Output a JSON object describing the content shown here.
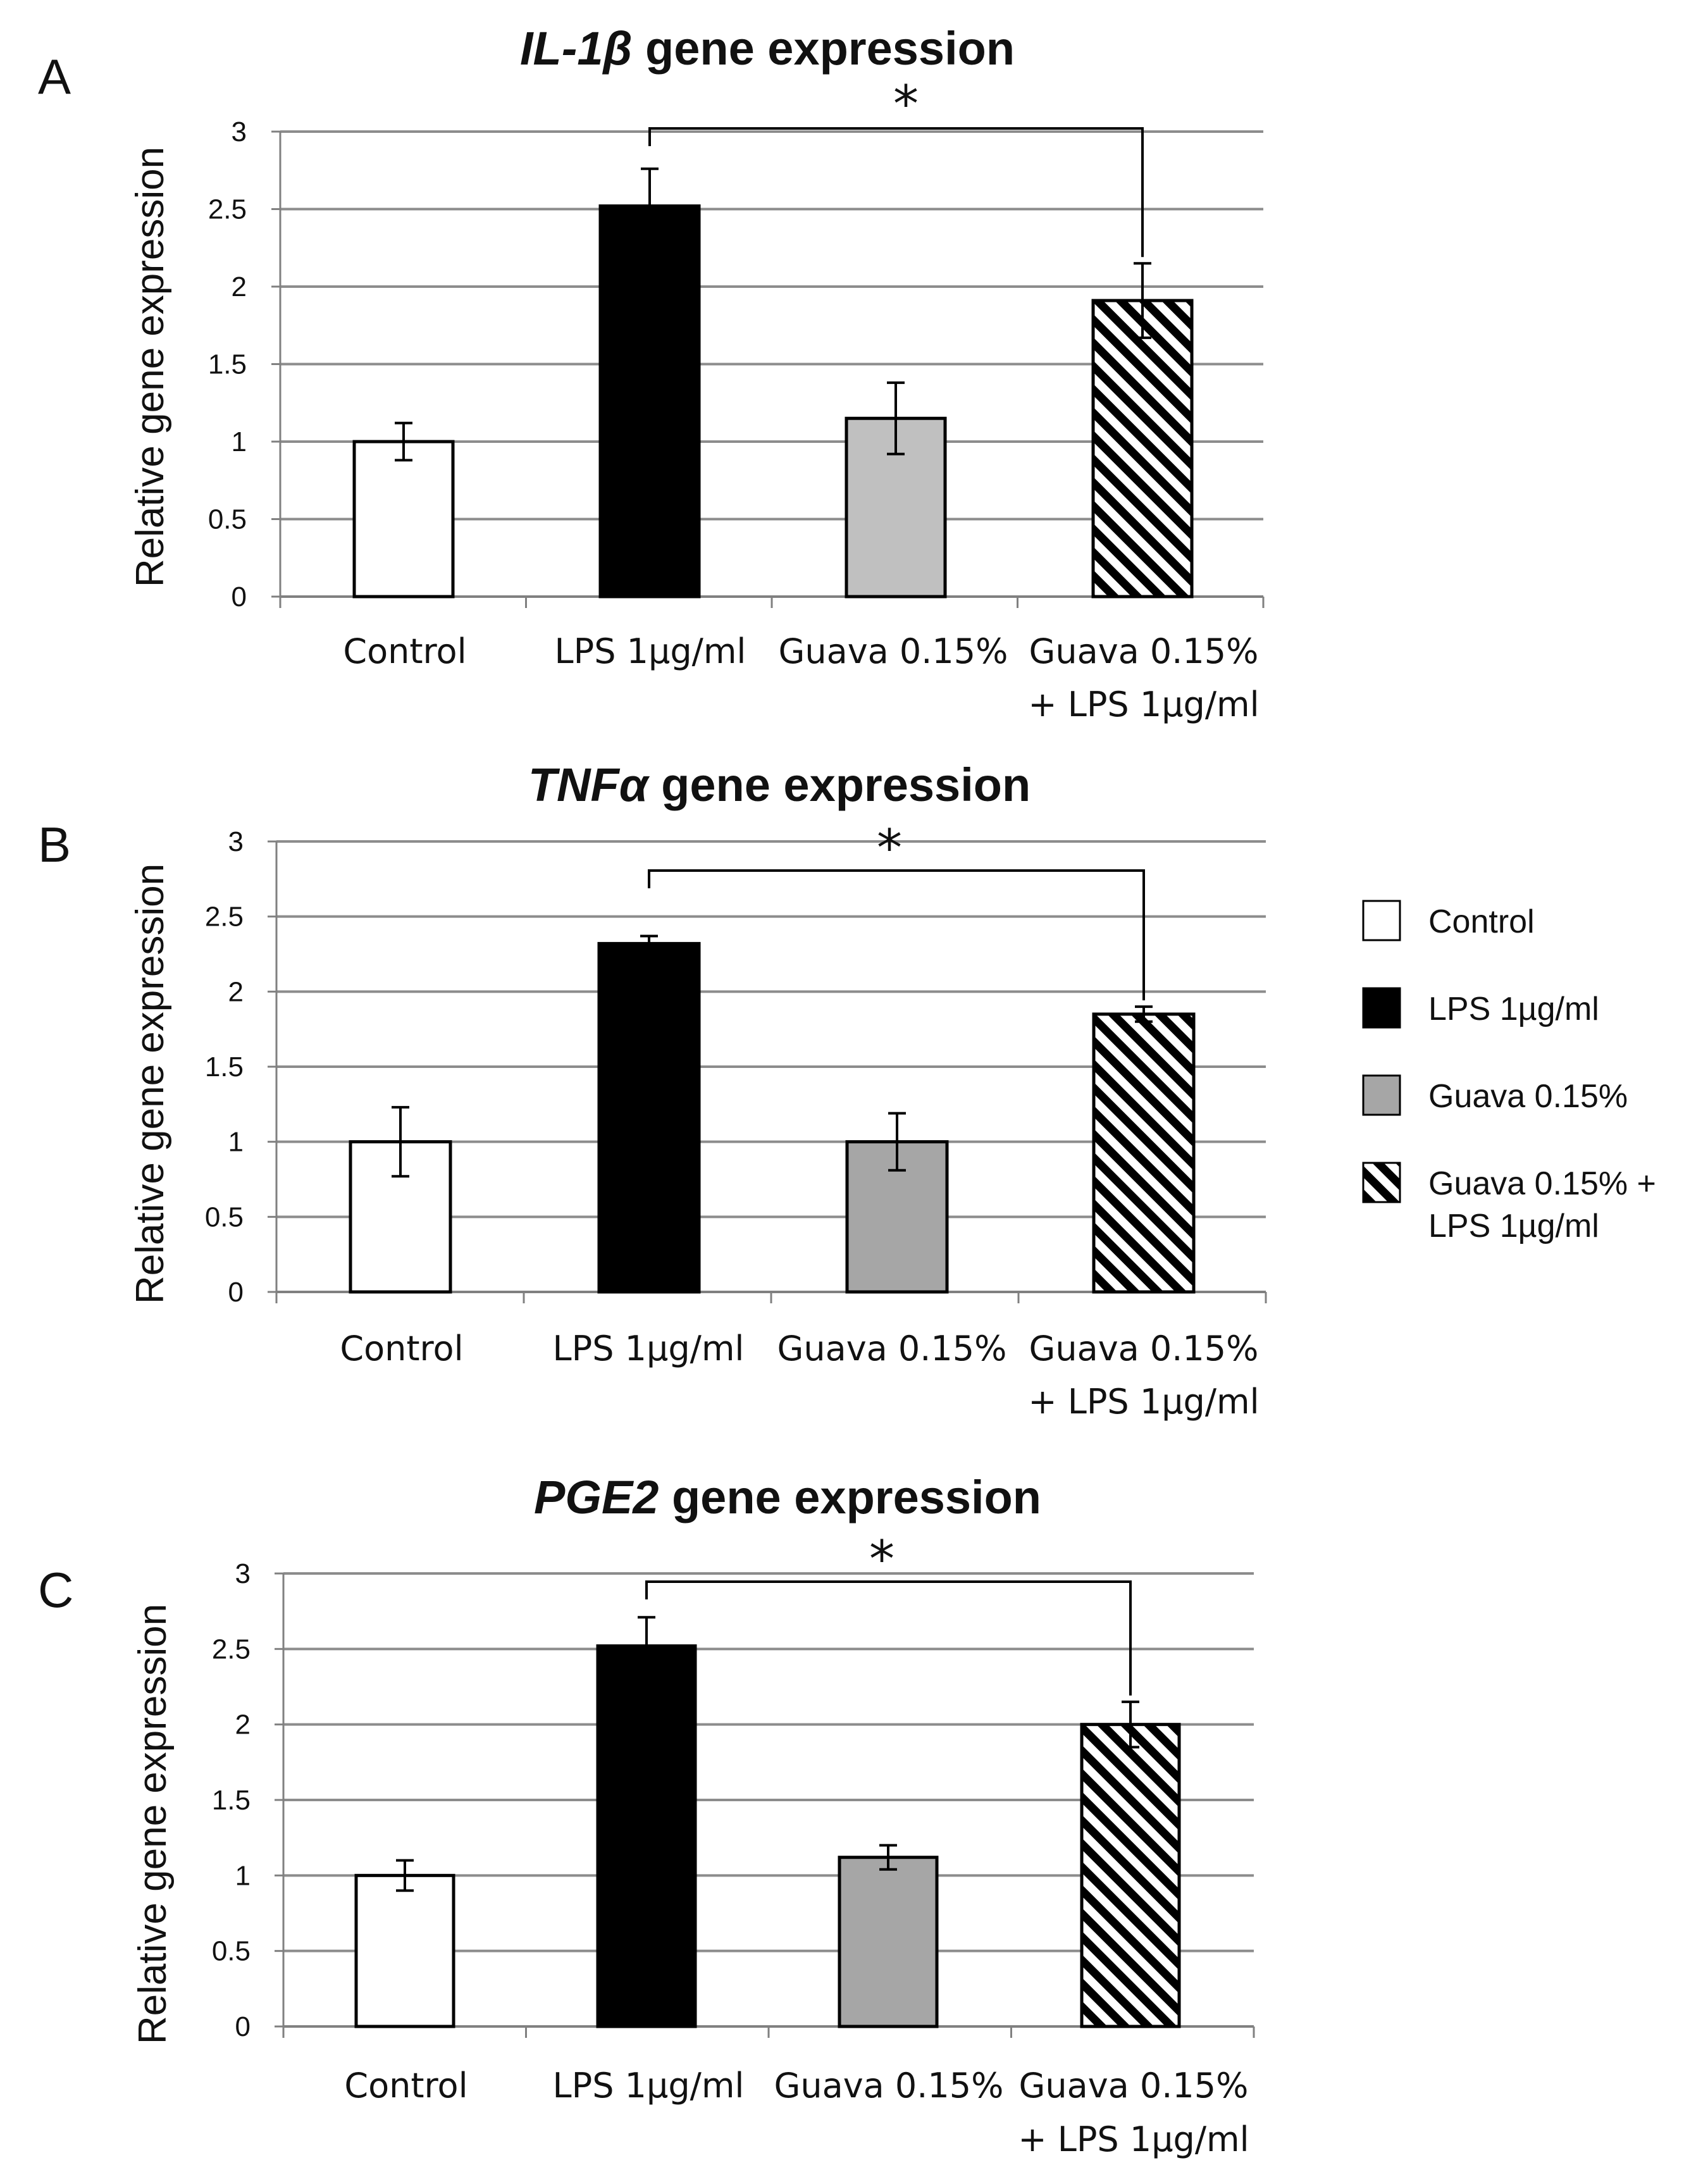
{
  "figure": {
    "panels": [
      {
        "label": "A",
        "title_gene": "IL-1β",
        "title_rest": "gene expression"
      },
      {
        "label": "B",
        "title_gene": "TNFα",
        "title_rest": "gene expression"
      },
      {
        "label": "C",
        "title_gene": "PGE2",
        "title_rest": "gene expression"
      }
    ],
    "category_labels": [
      [
        "Control"
      ],
      [
        "LPS 1µg/ml"
      ],
      [
        "Guava 0.15%"
      ],
      [
        "Guava 0.15%",
        "+ LPS 1µg/ml"
      ]
    ],
    "significance_marker": "*",
    "legend": {
      "items": [
        {
          "lines": [
            "Control"
          ],
          "fill": "#ffffff"
        },
        {
          "lines": [
            "LPS 1µg/ml"
          ],
          "fill": "#000000"
        },
        {
          "lines": [
            "Guava 0.15%"
          ],
          "fill": "#a6a6a6"
        },
        {
          "lines": [
            "Guava 0.15% +",
            "LPS 1µg/ml"
          ],
          "fill": "hatch"
        }
      ]
    },
    "colors": {
      "control": "#ffffff",
      "lps": "#000000",
      "guava": "#a6a6a6",
      "gridline": "#8c8c8c",
      "axis": "#808080",
      "text": "#111111"
    }
  },
  "chart_data": [
    {
      "type": "bar",
      "title": "IL-1β gene expression",
      "ylabel": "Relative gene expression",
      "xlabel": "",
      "categories": [
        "Control",
        "LPS 1µg/ml",
        "Guava 0.15%",
        "Guava 0.15% + LPS 1µg/ml"
      ],
      "values": [
        1.0,
        2.52,
        1.15,
        1.91
      ],
      "errors": [
        0.12,
        0.24,
        0.23,
        0.24
      ],
      "bar_fills": [
        "#ffffff",
        "#000000",
        "#c0c0c0",
        "hatch"
      ],
      "ylim": [
        0,
        3
      ],
      "yticks": [
        0,
        0.5,
        1,
        1.5,
        2,
        2.5,
        3
      ],
      "ytick_labels": [
        "0",
        "0.5",
        "1",
        "1.5",
        "2",
        "2.5",
        "3"
      ],
      "grid": true,
      "significance": {
        "from": 1,
        "to": 3,
        "label": "*"
      }
    },
    {
      "type": "bar",
      "title": "TNFα gene expression",
      "ylabel": "Relative gene expression",
      "xlabel": "",
      "categories": [
        "Control",
        "LPS 1µg/ml",
        "Guava 0.15%",
        "Guava 0.15% + LPS 1µg/ml"
      ],
      "values": [
        1.0,
        2.32,
        1.0,
        1.85
      ],
      "errors": [
        0.23,
        0.05,
        0.19,
        0.05
      ],
      "bar_fills": [
        "#ffffff",
        "#000000",
        "#a6a6a6",
        "hatch"
      ],
      "ylim": [
        0,
        3
      ],
      "yticks": [
        0,
        0.5,
        1,
        1.5,
        2,
        2.5,
        3
      ],
      "ytick_labels": [
        "0",
        "0.5",
        "1",
        "1.5",
        "2",
        "2.5",
        "3"
      ],
      "grid": true,
      "significance": {
        "from": 1,
        "to": 3,
        "label": "*"
      }
    },
    {
      "type": "bar",
      "title": "PGE2 gene expression",
      "ylabel": "Relative gene expression",
      "xlabel": "",
      "categories": [
        "Control",
        "LPS 1µg/ml",
        "Guava 0.15%",
        "Guava 0.15% + LPS 1µg/ml"
      ],
      "values": [
        1.0,
        2.52,
        1.12,
        2.0
      ],
      "errors": [
        0.1,
        0.19,
        0.08,
        0.15
      ],
      "bar_fills": [
        "#ffffff",
        "#000000",
        "#a6a6a6",
        "hatch"
      ],
      "ylim": [
        0,
        3
      ],
      "yticks": [
        0,
        0.5,
        1,
        1.5,
        2,
        2.5,
        3
      ],
      "ytick_labels": [
        "0",
        "0.5",
        "1",
        "1.5",
        "2",
        "2.5",
        "3"
      ],
      "grid": true,
      "significance": {
        "from": 1,
        "to": 3,
        "label": "*"
      }
    }
  ]
}
